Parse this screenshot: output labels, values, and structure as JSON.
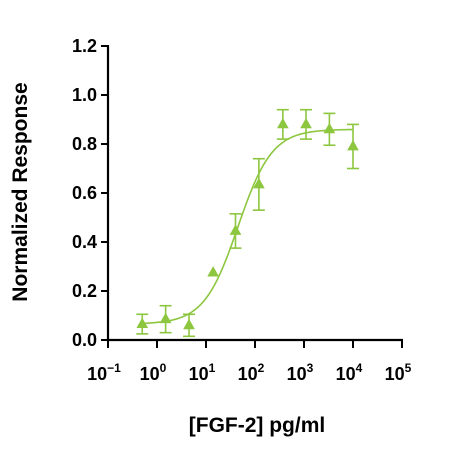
{
  "chart_data": {
    "type": "scatter",
    "xlabel": "[FGF-2] pg/ml",
    "ylabel": "Normalized Response",
    "x_scale": "log",
    "xlim": [
      0.1,
      100000
    ],
    "ylim": [
      0,
      1.2
    ],
    "grid": false,
    "x_ticks": [
      {
        "base": "10",
        "exp": "-1"
      },
      {
        "base": "10",
        "exp": "0"
      },
      {
        "base": "10",
        "exp": "1"
      },
      {
        "base": "10",
        "exp": "2"
      },
      {
        "base": "10",
        "exp": "3"
      },
      {
        "base": "10",
        "exp": "4"
      },
      {
        "base": "10",
        "exp": "5"
      }
    ],
    "y_ticks": [
      "0.0",
      "0.2",
      "0.4",
      "0.6",
      "0.8",
      "1.0",
      "1.2"
    ],
    "color": "#8DC63F",
    "series": [
      {
        "marker": "triangle",
        "points": [
          {
            "x": 0.5,
            "y": 0.065,
            "err": 0.04
          },
          {
            "x": 1.5,
            "y": 0.085,
            "err": 0.055
          },
          {
            "x": 4.5,
            "y": 0.06,
            "err": 0.045
          },
          {
            "x": 14,
            "y": 0.275,
            "err": 0
          },
          {
            "x": 40,
            "y": 0.445,
            "err": 0.07
          },
          {
            "x": 120,
            "y": 0.635,
            "err": 0.105
          },
          {
            "x": 370,
            "y": 0.88,
            "err": 0.06
          },
          {
            "x": 1100,
            "y": 0.88,
            "err": 0.06
          },
          {
            "x": 3300,
            "y": 0.86,
            "err": 0.065
          },
          {
            "x": 10000,
            "y": 0.79,
            "err": 0.09
          }
        ]
      }
    ],
    "fit_curve": {
      "model": "4PL",
      "bottom": 0.065,
      "top": 0.86,
      "ec50": 45,
      "hill": 1.25
    }
  }
}
